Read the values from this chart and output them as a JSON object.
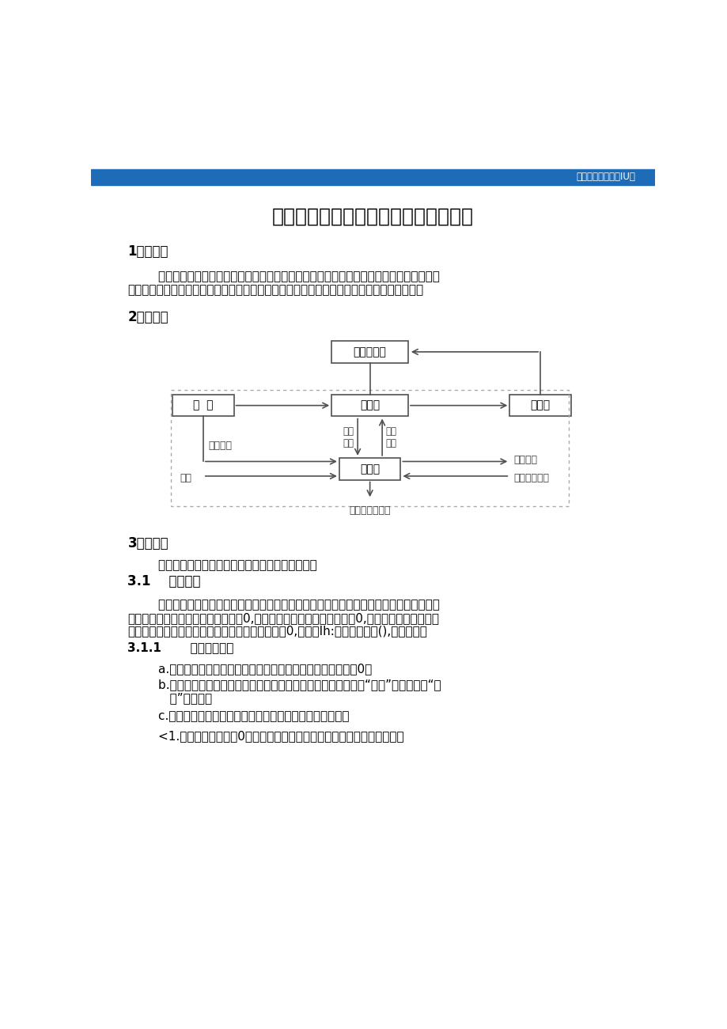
{
  "header_color": "#1e6bb8",
  "header_text": "建筑资朴下友就在IU司",
  "header_text_color": "#ffffff",
  "bg_color": "#ffffff",
  "title": "低压电动机软起动装置限制器设计方案",
  "title_fontsize": 18,
  "section1_heading": "1功能概述",
  "section1_line1": "        依据所设定的软起动或软停止方式及参数，限制品闸管的触发角度变更，变更电动机进线",
  "section1_line2": "电压，实现电动机的软起动或软停止。同时全程监测电动机电流，实现对电动机的多种爱护。",
  "section2_heading": "2组成框图",
  "section3_heading": "3功能模块",
  "section3_body": "        限制器按功能可以分为四个模块，分别分析如下：",
  "section31_heading": "3.1    调整单元",
  "section31_line1": "        工作方式分为四种：斜坡电压起动、恒流起动、硬停止、软停止。通过对限溢倍数的设定",
  "section31_line2": "来实现起动方式的选择：限流倍数为0,为斜坡电压起动；限流倍数大于0,为恒流起动。通过对停",
  "section31_line3": "止时间的设定来实现停止方式的选择：停止时间为0,为硬停Ih:停止时间大于(),为软停止。",
  "section311_heading": "3.1.1       斜坡电压起动",
  "section311_a": "        a.检测到起动信号，且旁路接触器断开，参数限流倍数设置为0；",
  "section311_b1": "        b.由设定的起始电压计算出触发角度，发出晶闸管触发脉冲，息“停止”指示灯，亮“起",
  "section311_b2": "           动”指示灯；",
  "section311_c": "        c.按设定的起动时间，逐步移动触发角度，增大电机电压；",
  "section311_1": "        <1.晶闸管触发角达到0度，即电机电压达到全压，起动完成触点闭合，使",
  "box_color": "#ffffff",
  "box_border_color": "#505050",
  "arrow_color": "#505050",
  "diagram_label_color": "#404040",
  "text_color": "#000000",
  "text_fontsize": 11,
  "heading_fontsize": 12,
  "subheading_fontsize": 11
}
